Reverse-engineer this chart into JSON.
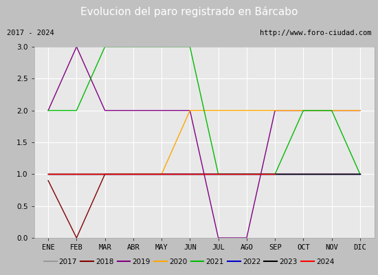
{
  "title": "Evolucion del paro registrado en Bárcabo",
  "subtitle_left": "2017 - 2024",
  "subtitle_right": "http://www.foro-ciudad.com",
  "months": [
    "ENE",
    "FEB",
    "MAR",
    "ABR",
    "MAY",
    "JUN",
    "JUL",
    "AGO",
    "SEP",
    "OCT",
    "NOV",
    "DIC"
  ],
  "ylim": [
    0.0,
    3.0
  ],
  "yticks": [
    0.0,
    0.5,
    1.0,
    1.5,
    2.0,
    2.5,
    3.0
  ],
  "series": {
    "2017": {
      "color": "#999999",
      "data": [
        1,
        1,
        1,
        1,
        1,
        1,
        1,
        1,
        1,
        1,
        1,
        1
      ]
    },
    "2018": {
      "color": "#800000",
      "data": [
        0.9,
        0,
        1,
        1,
        1,
        1,
        1,
        1,
        1,
        1,
        1,
        1
      ]
    },
    "2019": {
      "color": "#800080",
      "data": [
        2,
        3,
        2,
        2,
        2,
        2,
        0,
        0,
        2,
        2,
        2,
        2
      ]
    },
    "2020": {
      "color": "#ffa500",
      "data": [
        1,
        1,
        1,
        1,
        1,
        2,
        2,
        2,
        2,
        2,
        2,
        2
      ]
    },
    "2021": {
      "color": "#00bb00",
      "data": [
        2,
        2,
        3,
        3,
        3,
        3,
        1,
        1,
        1,
        2,
        2,
        1
      ]
    },
    "2022": {
      "color": "#0000cc",
      "data": [
        1,
        1,
        1,
        1,
        1,
        1,
        1,
        1,
        1,
        1,
        1,
        1
      ]
    },
    "2023": {
      "color": "#000000",
      "data": [
        1,
        1,
        1,
        1,
        1,
        1,
        1,
        1,
        1,
        1,
        1,
        1
      ]
    },
    "2024": {
      "color": "#ff0000",
      "data": [
        1,
        1,
        1,
        1,
        1,
        1,
        1,
        1,
        1,
        null,
        null,
        null
      ]
    }
  },
  "background_title": "#4080c0",
  "background_subtitle": "#e0e0e0",
  "background_plot": "#e8e8e8",
  "grid_color": "#ffffff",
  "title_color": "#ffffff",
  "title_fontsize": 11,
  "tick_fontsize": 7.5,
  "legend_fontsize": 7.5
}
